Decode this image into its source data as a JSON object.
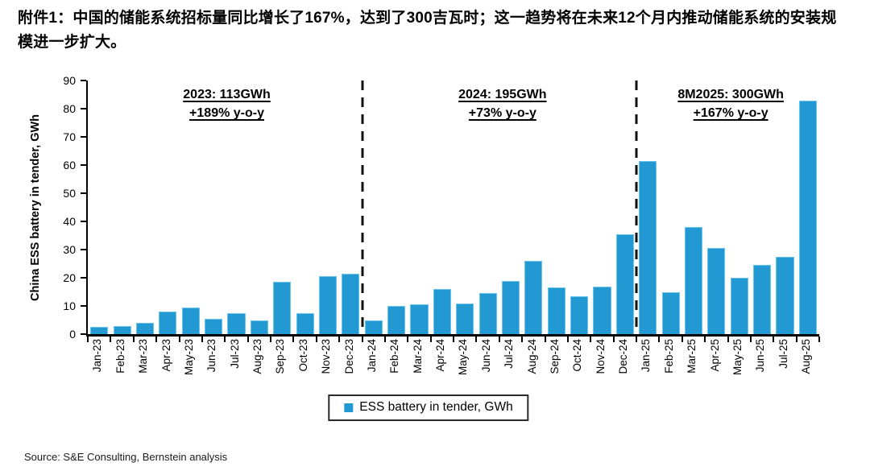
{
  "title": "附件1：中国的储能系统招标量同比增长了167%，达到了300吉瓦时；这一趋势将在未来12个月内推动储能系统的安装规模进一步扩大。",
  "source": "Source: S&E Consulting, Bernstein analysis",
  "legend": {
    "label": "ESS battery in tender, GWh",
    "swatch_color": "#2399d4"
  },
  "annotations": [
    {
      "line1": "2023: 113GWh",
      "line2": "+189% y-o-y",
      "x_percent": 19
    },
    {
      "line1": "2024: 195GWh",
      "line2": "+73% y-o-y",
      "x_percent": 56.7
    },
    {
      "line1": "8M2025: 300GWh",
      "line2": "+167% y-o-y",
      "x_percent": 87.9
    }
  ],
  "chart_data": {
    "type": "bar",
    "title": "",
    "xlabel": "",
    "ylabel": "China ESS battery in tender, GWh",
    "ylim": [
      0,
      90
    ],
    "ytick_interval": 10,
    "grid": false,
    "legend_position": "bottom",
    "bar_color": "#2399d4",
    "bar_edge_color": "#6cc4ea",
    "categories": [
      "Jan-23",
      "Feb-23",
      "Mar-23",
      "Apr-23",
      "May-23",
      "Jun-23",
      "Jul-23",
      "Aug-23",
      "Sep-23",
      "Oct-23",
      "Nov-23",
      "Dec-23",
      "Jan-24",
      "Feb-24",
      "Mar-24",
      "Apr-24",
      "May-24",
      "Jun-24",
      "Jul-24",
      "Aug-24",
      "Sep-24",
      "Oct-24",
      "Nov-24",
      "Dec-24",
      "Jan-25",
      "Feb-25",
      "Mar-25",
      "Apr-25",
      "May-25",
      "Jun-25",
      "Jul-25",
      "Aug-25"
    ],
    "values": [
      2.5,
      3,
      4,
      8,
      9.5,
      5.5,
      7.5,
      5,
      18.5,
      7.5,
      20.5,
      21.5,
      5,
      10,
      10.5,
      16,
      11,
      14.5,
      19,
      26,
      16.5,
      13.5,
      17,
      35.5,
      61.5,
      15,
      38,
      30.5,
      20,
      24.5,
      27.5,
      83
    ],
    "year_totals": [
      {
        "period": "2023",
        "total_gwh": 113,
        "yoy": "+189%"
      },
      {
        "period": "2024",
        "total_gwh": 195,
        "yoy": "+73%"
      },
      {
        "period": "8M2025",
        "total_gwh": 300,
        "yoy": "+167%"
      }
    ],
    "separator_after_index": [
      12,
      24
    ]
  }
}
